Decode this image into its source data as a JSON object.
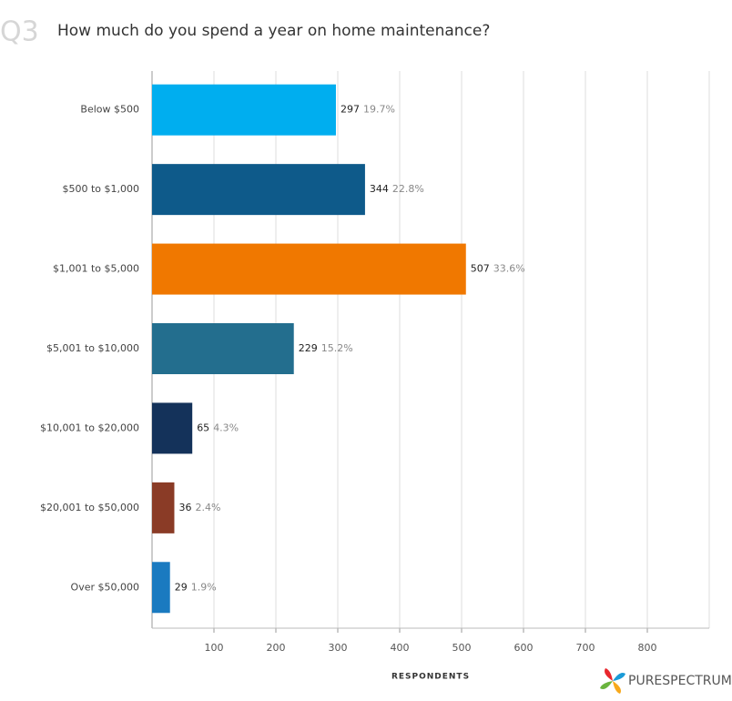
{
  "chart_data": {
    "type": "bar",
    "orientation": "horizontal",
    "question": "Q3",
    "title": "How much do you spend a year on home maintenance?",
    "categories": [
      "Below $500",
      "$500 to $1,000",
      "$1,001 to $5,000",
      "$5,001 to $10,000",
      "$10,001 to $20,000",
      "$20,001 to $50,000",
      "Over $50,000"
    ],
    "values": [
      297,
      344,
      507,
      229,
      65,
      36,
      29
    ],
    "percent_labels": [
      "19.7%",
      "22.8%",
      "33.6%",
      "15.2%",
      "4.3%",
      "2.4%",
      "1.9%"
    ],
    "colors": [
      "#00aeef",
      "#0e5a8a",
      "#f07800",
      "#236e8e",
      "#14325a",
      "#8a3b26",
      "#1a7ac0"
    ],
    "xlim": [
      0,
      900
    ],
    "xticks": [
      100,
      200,
      300,
      400,
      500,
      600,
      700,
      800
    ],
    "xlabel": "RESPONDENTS",
    "grid": true,
    "brand": "PURESPECTRUM"
  }
}
